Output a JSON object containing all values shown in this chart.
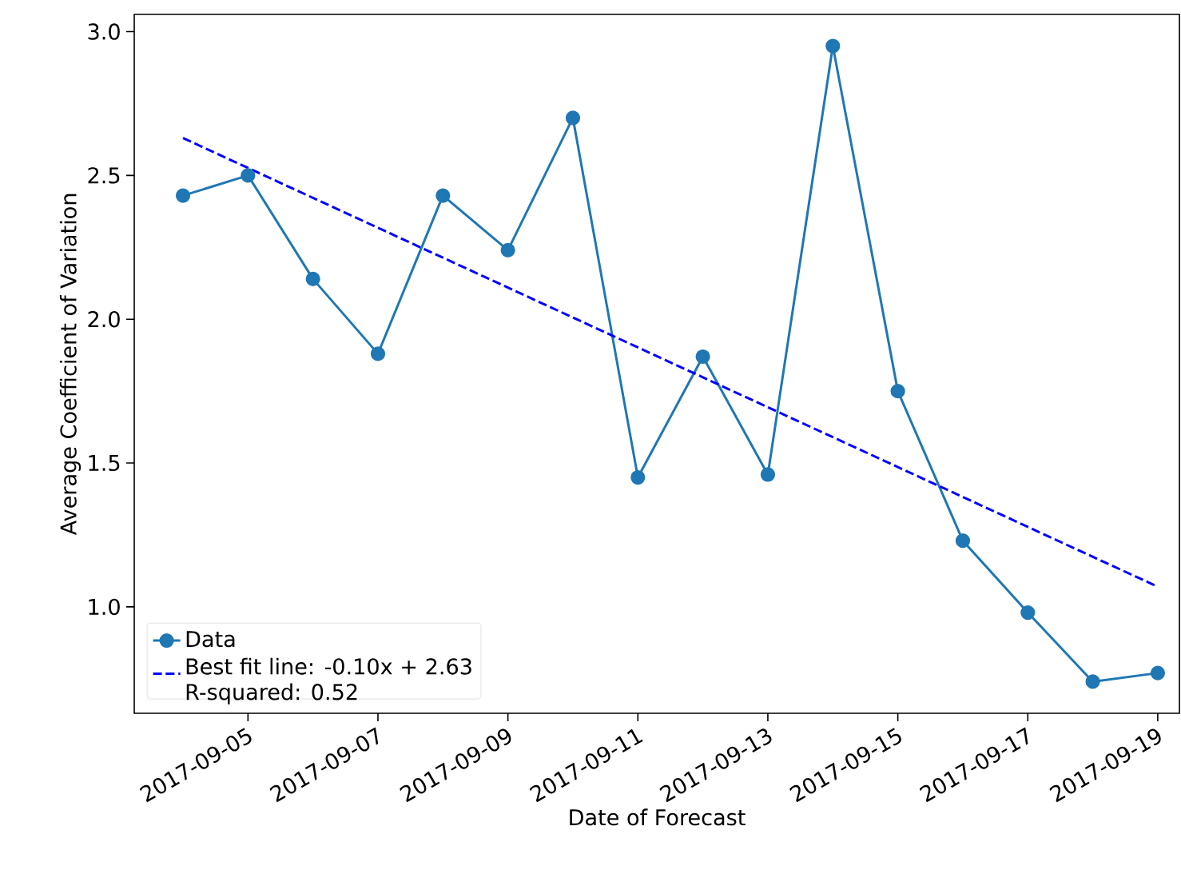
{
  "chart_data": {
    "type": "line",
    "xlabel": "Date of Forecast",
    "ylabel": "Average Coefficient of Variation",
    "xlim": [
      "2017-09-03T06:00",
      "2017-09-19T08:00"
    ],
    "ylim": [
      0.63,
      3.06
    ],
    "xticks": [
      "2017-09-05",
      "2017-09-07",
      "2017-09-09",
      "2017-09-11",
      "2017-09-13",
      "2017-09-15",
      "2017-09-17",
      "2017-09-19"
    ],
    "yticks": [
      {
        "value": 1.0,
        "label": "1.0"
      },
      1.5,
      {
        "value": 2.0,
        "label": "2.0"
      },
      2.5,
      {
        "value": 3.0,
        "label": "3.0"
      }
    ],
    "grid": false,
    "legend": "bottom left",
    "series": [
      {
        "name": "Data",
        "color": "#1f77b4",
        "marker": "circle",
        "line_style": "solid",
        "x": [
          "2017-09-04",
          "2017-09-05",
          "2017-09-06",
          "2017-09-07",
          "2017-09-08",
          "2017-09-09",
          "2017-09-10",
          "2017-09-11",
          "2017-09-12",
          "2017-09-13",
          "2017-09-14",
          "2017-09-15",
          "2017-09-16",
          "2017-09-17",
          "2017-09-18",
          "2017-09-19"
        ],
        "values": [
          2.43,
          2.5,
          2.14,
          1.88,
          2.43,
          2.24,
          2.7,
          1.45,
          1.87,
          1.46,
          2.95,
          1.75,
          1.23,
          0.98,
          0.74,
          0.77
        ]
      },
      {
        "name": "Best fit line: -0.10x + 2.63",
        "color": "#0000ff",
        "marker": "none",
        "line_style": "dashed",
        "x": [
          "2017-09-04",
          "2017-09-19"
        ],
        "values": [
          2.63,
          1.07
        ]
      }
    ],
    "annotations": [
      "R-squared: 0.52"
    ]
  }
}
